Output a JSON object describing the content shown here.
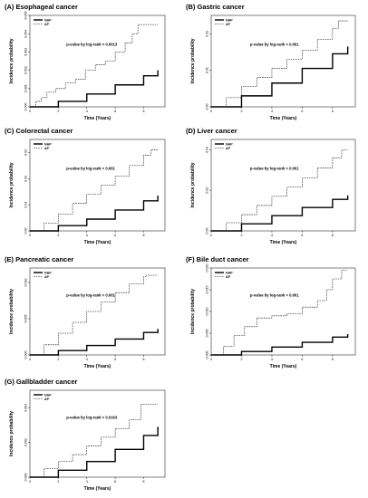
{
  "chart_data": [
    {
      "panel": "A",
      "title": "(A) Esophageal cancer",
      "type": "line",
      "xlabel": "Time (Years)",
      "ylabel": "Incidence probability",
      "xlim": [
        0,
        9.5
      ],
      "ylim": [
        0,
        0.005
      ],
      "xticks": [
        "0",
        "2",
        "4",
        "6",
        "8"
      ],
      "xtick_values": [
        0,
        2,
        4,
        6,
        8
      ],
      "yticks": [
        "0.000",
        "0.001",
        "0.002",
        "0.003",
        "0.004",
        "0.005"
      ],
      "ytick_values": [
        0,
        0.001,
        0.002,
        0.003,
        0.004,
        0.005
      ],
      "annotation": "p-value by log-rank = 0.0013",
      "legend": [
        "NAP",
        "AP"
      ],
      "legend_position": "top-left",
      "series": [
        {
          "name": "NAP",
          "style": "solid",
          "x": [
            0,
            2,
            4,
            6,
            8,
            9
          ],
          "y": [
            0.0,
            0.0003,
            0.0007,
            0.0012,
            0.0017,
            0.002
          ]
        },
        {
          "name": "AP",
          "style": "dashed",
          "x": [
            0,
            0.4,
            0.8,
            1.2,
            1.8,
            2.5,
            3.2,
            3.9,
            4.6,
            5.3,
            6.0,
            6.7,
            7.2,
            7.6,
            9
          ],
          "y": [
            0.0,
            0.0003,
            0.0005,
            0.0008,
            0.001,
            0.0013,
            0.0015,
            0.002,
            0.0023,
            0.0025,
            0.003,
            0.0035,
            0.004,
            0.0045,
            0.0045
          ]
        }
      ]
    },
    {
      "panel": "B",
      "title": "(B) Gastric cancer",
      "type": "line",
      "xlabel": "Time (Years)",
      "ylabel": "Incidence probability",
      "xlim": [
        0,
        9.5
      ],
      "ylim": [
        0,
        0.025
      ],
      "xticks": [
        "0",
        "2",
        "4",
        "6",
        "8"
      ],
      "xtick_values": [
        0,
        2,
        4,
        6,
        8
      ],
      "yticks": [
        "0.00",
        "0.01",
        "0.02"
      ],
      "ytick_values": [
        0,
        0.01,
        0.02
      ],
      "annotation": "p-value by log-rank < 0.001",
      "legend": [
        "NAP",
        "AP"
      ],
      "legend_position": "top-left",
      "series": [
        {
          "name": "NAP",
          "style": "solid",
          "x": [
            0,
            2,
            4,
            6,
            8,
            9
          ],
          "y": [
            0.0,
            0.003,
            0.0065,
            0.0105,
            0.0145,
            0.0165
          ]
        },
        {
          "name": "AP",
          "style": "dashed",
          "x": [
            0,
            1,
            2,
            3,
            4,
            5,
            6,
            7,
            8,
            8.4,
            9
          ],
          "y": [
            0.0,
            0.0025,
            0.0055,
            0.008,
            0.0105,
            0.013,
            0.0155,
            0.0185,
            0.0215,
            0.0235,
            0.0235
          ]
        }
      ]
    },
    {
      "panel": "C",
      "title": "(C) Colorectal cancer",
      "type": "line",
      "xlabel": "Time (Years)",
      "ylabel": "Incidence probability",
      "xlim": [
        0,
        9.5
      ],
      "ylim": [
        0,
        0.035
      ],
      "xticks": [
        "0",
        "2",
        "4",
        "6",
        "8"
      ],
      "xtick_values": [
        0,
        2,
        4,
        6,
        8
      ],
      "yticks": [
        "0.00",
        "0.01",
        "0.02",
        "0.03"
      ],
      "ytick_values": [
        0,
        0.01,
        0.02,
        0.03
      ],
      "annotation": "p-value by log-rank < 0.001",
      "legend": [
        "NAP",
        "AP"
      ],
      "legend_position": "top-left",
      "series": [
        {
          "name": "NAP",
          "style": "solid",
          "x": [
            0,
            2,
            4,
            6,
            8,
            9
          ],
          "y": [
            0.0,
            0.002,
            0.0045,
            0.008,
            0.0115,
            0.0135
          ]
        },
        {
          "name": "AP",
          "style": "dashed",
          "x": [
            0,
            1,
            2,
            3,
            4,
            5,
            6,
            7,
            8,
            8.5,
            9
          ],
          "y": [
            0.0,
            0.003,
            0.0065,
            0.0105,
            0.014,
            0.0175,
            0.021,
            0.025,
            0.029,
            0.031,
            0.031
          ]
        }
      ]
    },
    {
      "panel": "D",
      "title": "(D) Liver cancer",
      "type": "line",
      "xlabel": "Time (Years)",
      "ylabel": "Incidence probability",
      "xlim": [
        0,
        9.5
      ],
      "ylim": [
        0,
        0.045
      ],
      "xticks": [
        "0",
        "2",
        "4",
        "6",
        "8"
      ],
      "xtick_values": [
        0,
        2,
        4,
        6,
        8
      ],
      "yticks": [
        "0.00",
        "0.02",
        "0.04"
      ],
      "ytick_values": [
        0,
        0.02,
        0.04
      ],
      "annotation": "p-value by log-rank < 0.001",
      "legend": [
        "NAP",
        "AP"
      ],
      "legend_position": "top-left",
      "series": [
        {
          "name": "NAP",
          "style": "solid",
          "x": [
            0,
            2,
            4,
            6,
            8,
            9
          ],
          "y": [
            0.0,
            0.0035,
            0.0075,
            0.0115,
            0.0155,
            0.0175
          ]
        },
        {
          "name": "AP",
          "style": "dashed",
          "x": [
            0,
            1,
            2,
            3,
            4,
            5,
            6,
            7,
            8,
            8.6,
            9
          ],
          "y": [
            0.0,
            0.004,
            0.008,
            0.0125,
            0.017,
            0.0215,
            0.026,
            0.031,
            0.036,
            0.04,
            0.04
          ]
        }
      ]
    },
    {
      "panel": "E",
      "title": "(E) Pancreatic cancer",
      "type": "line",
      "xlabel": "Time (Years)",
      "ylabel": "Incidence probability",
      "xlim": [
        0,
        9.5
      ],
      "ylim": [
        0,
        0.012
      ],
      "xticks": [
        "0",
        "2",
        "4",
        "6",
        "8"
      ],
      "xtick_values": [
        0,
        2,
        4,
        6,
        8
      ],
      "yticks": [
        "0.000",
        "0.005",
        "0.010"
      ],
      "ytick_values": [
        0,
        0.005,
        0.01
      ],
      "annotation": "p-value by log-rank < 0.001",
      "legend": [
        "NAP",
        "AP"
      ],
      "legend_position": "top-left",
      "series": [
        {
          "name": "NAP",
          "style": "solid",
          "x": [
            0,
            2,
            4,
            6,
            8,
            9
          ],
          "y": [
            0.0,
            0.0006,
            0.0013,
            0.0022,
            0.0031,
            0.0036
          ]
        },
        {
          "name": "AP",
          "style": "dashed",
          "x": [
            0,
            1,
            2,
            3,
            4,
            5,
            6,
            7,
            8,
            8.2,
            9
          ],
          "y": [
            0.0,
            0.0014,
            0.003,
            0.0045,
            0.006,
            0.0073,
            0.0086,
            0.0098,
            0.0108,
            0.011,
            0.011
          ]
        }
      ]
    },
    {
      "panel": "F",
      "title": "(F) Bile duct cancer",
      "type": "line",
      "xlabel": "Time (Years)",
      "ylabel": "Incidence probability",
      "xlim": [
        0,
        9.5
      ],
      "ylim": [
        0,
        0.02
      ],
      "xticks": [
        "0",
        "2",
        "4",
        "6",
        "8"
      ],
      "xtick_values": [
        0,
        2,
        4,
        6,
        8
      ],
      "yticks": [
        "0.000",
        "0.005",
        "0.010",
        "0.015",
        "0.020"
      ],
      "ytick_values": [
        0,
        0.005,
        0.01,
        0.015,
        0.02
      ],
      "annotation": "p-value by log-rank < 0.001",
      "legend": [
        "NAP",
        "AP"
      ],
      "legend_position": "top-left",
      "series": [
        {
          "name": "NAP",
          "style": "solid",
          "x": [
            0,
            2,
            4,
            6,
            8,
            9
          ],
          "y": [
            0.0,
            0.0008,
            0.0018,
            0.0029,
            0.0041,
            0.0048
          ]
        },
        {
          "name": "AP",
          "style": "dashed",
          "x": [
            0,
            0.8,
            1.5,
            2.2,
            3,
            4,
            5,
            6,
            7,
            7.6,
            8,
            8.6,
            9
          ],
          "y": [
            0.0,
            0.002,
            0.0045,
            0.0065,
            0.0085,
            0.009,
            0.0095,
            0.011,
            0.0125,
            0.015,
            0.0175,
            0.0195,
            0.0195
          ]
        }
      ]
    },
    {
      "panel": "G",
      "title": "(G) Gallbladder cancer",
      "type": "line",
      "xlabel": "Time (Years)",
      "ylabel": "Incidence probability",
      "xlim": [
        0,
        9.5
      ],
      "ylim": [
        0,
        0.005
      ],
      "xticks": [
        "0",
        "2",
        "4",
        "6",
        "8"
      ],
      "xtick_values": [
        0,
        2,
        4,
        6,
        8
      ],
      "yticks": [
        "0.000",
        "0.002",
        "0.004"
      ],
      "ytick_values": [
        0,
        0.002,
        0.004
      ],
      "annotation": "p-value by log-rank = 0.0163",
      "legend": [
        "NAP",
        "AP"
      ],
      "legend_position": "top-left",
      "series": [
        {
          "name": "NAP",
          "style": "solid",
          "x": [
            0,
            2,
            4,
            6,
            8,
            9
          ],
          "y": [
            0.0,
            0.0004,
            0.0009,
            0.0016,
            0.0024,
            0.0029
          ]
        },
        {
          "name": "AP",
          "style": "dashed",
          "x": [
            0,
            1,
            2,
            3,
            4,
            5,
            6,
            7,
            7.8,
            9
          ],
          "y": [
            0.0,
            0.0005,
            0.0009,
            0.0013,
            0.0018,
            0.0023,
            0.0028,
            0.0033,
            0.0042,
            0.0042
          ]
        }
      ]
    }
  ]
}
